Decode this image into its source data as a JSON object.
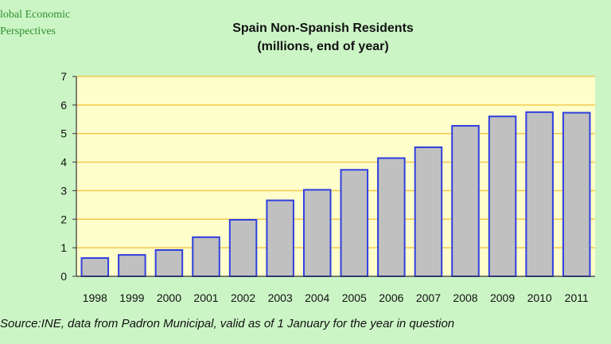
{
  "brand": {
    "line1": "lobal Economic",
    "line2": "Perspectives"
  },
  "chart_data": {
    "type": "bar",
    "title": "Spain Non-Spanish Residents",
    "subtitle": "(millions, end of year)",
    "categories": [
      "1998",
      "1999",
      "2000",
      "2001",
      "2002",
      "2003",
      "2004",
      "2005",
      "2006",
      "2007",
      "2008",
      "2009",
      "2010",
      "2011"
    ],
    "values": [
      0.64,
      0.75,
      0.92,
      1.37,
      1.98,
      2.66,
      3.03,
      3.73,
      4.14,
      4.52,
      5.27,
      5.6,
      5.75,
      5.73
    ],
    "ylim": [
      0,
      7
    ],
    "yticks": [
      "0",
      "1",
      "2",
      "3",
      "4",
      "5",
      "6",
      "7"
    ],
    "xlabel": "",
    "ylabel": "",
    "grid": true,
    "colors": {
      "plot_bg": "#ffffcc",
      "grid": "#f2c84b",
      "bar_fill": "#c0c0c0",
      "bar_stroke": "#2f3fe0"
    }
  },
  "source": "Source:INE, data from Padron Municipal, valid as of 1 January for the year in question"
}
